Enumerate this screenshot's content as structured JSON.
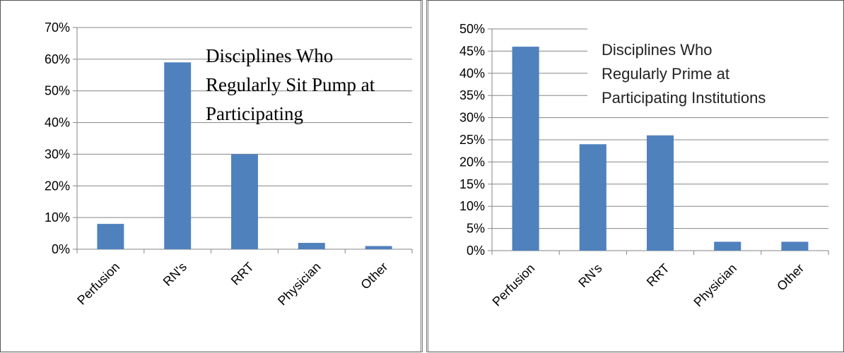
{
  "chart_data": [
    {
      "type": "bar",
      "title_lines": [
        "Disciplines Who",
        "Regularly Sit Pump at",
        "Participating"
      ],
      "categories": [
        "Perfusion",
        "RN's",
        "RRT",
        "Physician",
        "Other"
      ],
      "values": [
        8,
        59,
        30,
        2,
        1
      ],
      "y_ticks": [
        "0%",
        "10%",
        "20%",
        "30%",
        "40%",
        "50%",
        "60%",
        "70%"
      ],
      "ylim": [
        0,
        70
      ],
      "grid": true,
      "color": "#4F81BD"
    },
    {
      "type": "bar",
      "title_lines": [
        "Disciplines Who",
        "Regularly Prime at",
        "Participating Institutions"
      ],
      "categories": [
        "Perfusion",
        "RN's",
        "RRT",
        "Physician",
        "Other"
      ],
      "values": [
        46,
        24,
        26,
        2,
        2
      ],
      "y_ticks": [
        "0%",
        "5%",
        "10%",
        "15%",
        "20%",
        "25%",
        "30%",
        "35%",
        "40%",
        "45%",
        "50%"
      ],
      "ylim": [
        0,
        50
      ],
      "grid": true,
      "color": "#4F81BD"
    }
  ]
}
